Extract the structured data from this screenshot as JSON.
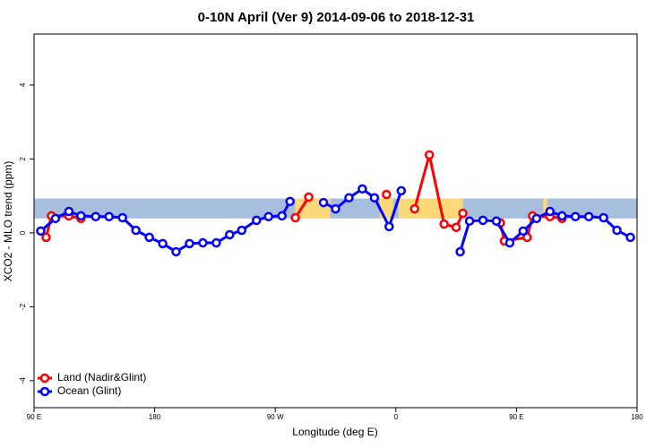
{
  "chart_data": {
    "type": "line",
    "title": "0-10N April (Ver 9)   2014-09-06 to 2018-12-31",
    "xlabel": "Longitude (deg E)",
    "ylabel": "XCO2 - MLO trend (ppm)",
    "xlim": [
      90,
      540
    ],
    "ylim": [
      -4.73,
      5.38
    ],
    "xticks": [
      {
        "value": 90,
        "label": "90 E"
      },
      180,
      {
        "value": 270,
        "label": "90 W"
      },
      {
        "value": 360,
        "label": "0"
      },
      {
        "value": 450,
        "label": "90 E"
      },
      {
        "value": 540,
        "label": "180"
      }
    ],
    "yticks": [
      -4,
      -2,
      0,
      2,
      4
    ],
    "map_band": {
      "ylim": [
        0.39,
        0.93
      ],
      "ocean_color": "#a7bedf",
      "land_color": "#fdd97a",
      "land": [
        [
          285,
          311
        ],
        [
          348,
          358
        ],
        [
          362,
          410
        ],
        [
          470,
          473
        ]
      ]
    },
    "legend": "bottom-left",
    "series": [
      {
        "name": "Land (Nadir&Glint)",
        "color": "#ff0000",
        "x": [
          99,
          103,
          116,
          125,
          null,
          285,
          295,
          null,
          353,
          null,
          374,
          385,
          396,
          405,
          410,
          null,
          438,
          441,
          458,
          462,
          475,
          484
        ],
        "values": [
          -0.12,
          0.46,
          0.46,
          0.39,
          null,
          0.41,
          0.97,
          null,
          1.04,
          null,
          0.65,
          2.11,
          0.24,
          0.15,
          0.53,
          null,
          0.27,
          -0.22,
          -0.12,
          0.46,
          0.44,
          0.39
        ]
      },
      {
        "name": "Ocean (Glint)",
        "color": "#0000ff",
        "x": [
          95,
          106,
          116,
          125,
          136,
          146,
          156,
          166,
          176,
          186,
          196,
          206,
          216,
          226,
          236,
          245,
          256,
          265,
          275,
          281,
          null,
          306,
          315,
          325,
          335,
          344,
          355,
          364,
          null,
          408,
          415,
          425,
          435,
          445,
          455,
          465,
          475,
          484,
          494,
          504,
          515,
          525,
          535
        ],
        "values": [
          0.05,
          0.39,
          0.58,
          0.46,
          0.44,
          0.44,
          0.41,
          0.07,
          -0.12,
          -0.29,
          -0.51,
          -0.29,
          -0.27,
          -0.27,
          -0.05,
          0.07,
          0.34,
          0.44,
          0.46,
          0.85,
          null,
          0.82,
          0.65,
          0.95,
          1.19,
          0.95,
          0.17,
          1.14,
          null,
          -0.51,
          0.32,
          0.34,
          0.32,
          -0.27,
          0.05,
          0.39,
          0.58,
          0.46,
          0.44,
          0.44,
          0.41,
          0.07,
          -0.12
        ]
      }
    ]
  }
}
